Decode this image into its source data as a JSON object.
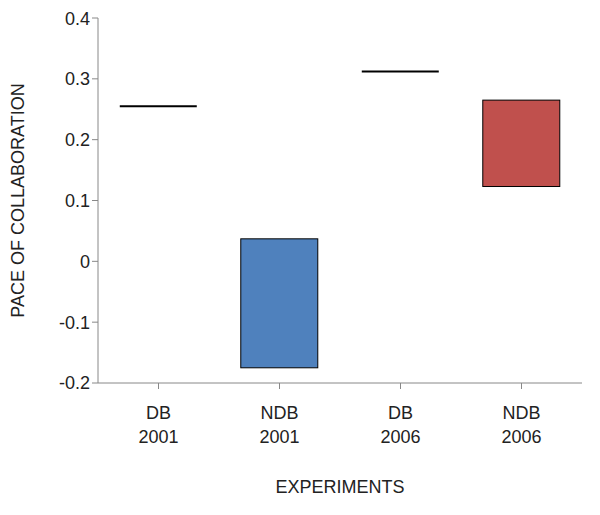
{
  "chart_data": {
    "type": "range_bar",
    "x_label": "EXPERIMENTS",
    "y_label": "PACE OF COLLABORATION",
    "categories": [
      "DB 2001",
      "NDB 2001",
      "DB 2006",
      "NDB 2006"
    ],
    "lows": [
      0.255,
      -0.175,
      0.312,
      0.123
    ],
    "highs": [
      0.255,
      0.037,
      0.312,
      0.265
    ],
    "colors": [
      "#000000",
      "#4f81bd",
      "#000000",
      "#c0504d"
    ],
    "ylim": [
      -0.2,
      0.4
    ],
    "yticks": [
      -0.2,
      -0.1,
      0,
      0.1,
      0.2,
      0.3,
      0.4
    ],
    "grid": false
  }
}
